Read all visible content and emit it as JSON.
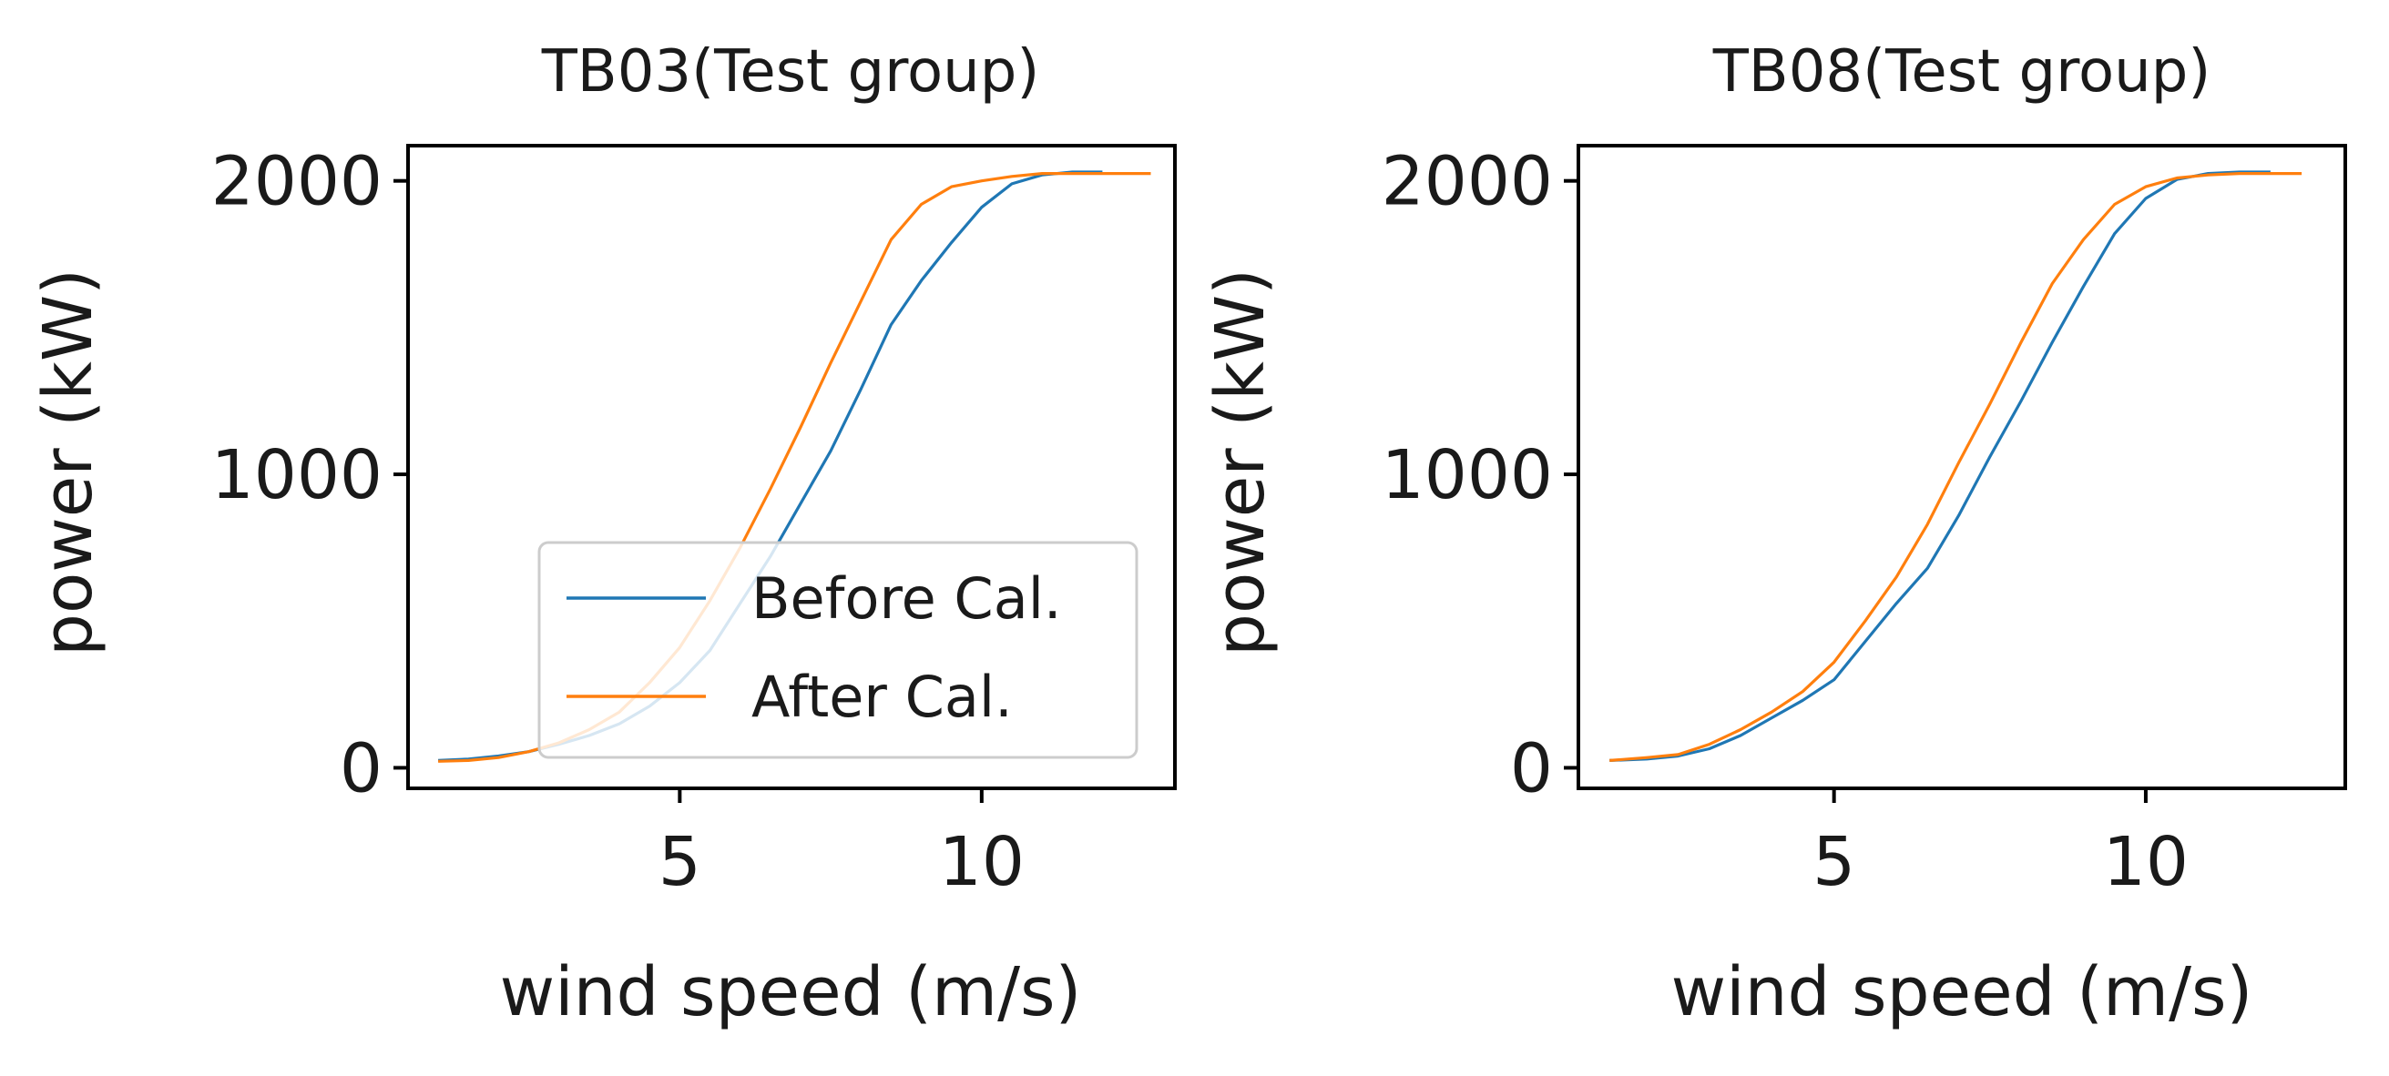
{
  "figure": {
    "colors": {
      "before": "#1f77b4",
      "after": "#ff7f0e",
      "axes": "#000000",
      "background": "#ffffff"
    }
  },
  "chart_data": [
    {
      "type": "line",
      "title": "TB03(Test group)",
      "xlabel": "wind speed (m/s)",
      "ylabel": "power (kW)",
      "xlim": [
        0.5,
        13.2
      ],
      "ylim": [
        -70,
        2120
      ],
      "xticks": [
        5,
        10
      ],
      "xtick_labels": [
        "5",
        "10"
      ],
      "yticks": [
        0,
        1000,
        2000
      ],
      "ytick_labels": [
        "0",
        "1000",
        "2000"
      ],
      "legend": {
        "position": "lower-right",
        "entries": [
          "Before Cal.",
          "After Cal."
        ]
      },
      "series": [
        {
          "name": "Before Cal.",
          "color": "#1f77b4",
          "x": [
            1.0,
            1.5,
            2.0,
            2.5,
            3.0,
            3.5,
            4.0,
            4.5,
            5.0,
            5.5,
            6.0,
            6.5,
            7.0,
            7.5,
            8.0,
            8.5,
            9.0,
            9.5,
            10.0,
            10.5,
            11.0,
            11.5,
            12.0
          ],
          "y": [
            25,
            30,
            40,
            55,
            80,
            110,
            150,
            210,
            290,
            400,
            560,
            720,
            900,
            1080,
            1290,
            1510,
            1660,
            1790,
            1910,
            1990,
            2020,
            2030,
            2030
          ]
        },
        {
          "name": "After Cal.",
          "color": "#ff7f0e",
          "x": [
            1.0,
            1.5,
            2.0,
            2.5,
            3.0,
            3.5,
            4.0,
            4.5,
            5.0,
            5.5,
            6.0,
            6.5,
            7.0,
            7.5,
            8.0,
            8.5,
            9.0,
            9.5,
            10.0,
            10.5,
            11.0,
            11.5,
            12.0,
            12.5,
            12.8
          ],
          "y": [
            22,
            25,
            35,
            55,
            85,
            130,
            190,
            290,
            410,
            570,
            750,
            950,
            1160,
            1380,
            1590,
            1800,
            1920,
            1980,
            2000,
            2015,
            2025,
            2025,
            2025,
            2025,
            2025
          ]
        }
      ]
    },
    {
      "type": "line",
      "title": "TB08(Test group)",
      "xlabel": "wind speed (m/s)",
      "ylabel": "power (kW)",
      "xlim": [
        0.9,
        13.2
      ],
      "ylim": [
        -70,
        2120
      ],
      "xticks": [
        5,
        10
      ],
      "xtick_labels": [
        "5",
        "10"
      ],
      "yticks": [
        0,
        1000,
        2000
      ],
      "ytick_labels": [
        "0",
        "1000",
        "2000"
      ],
      "series": [
        {
          "name": "Before Cal.",
          "color": "#1f77b4",
          "x": [
            1.4,
            2.0,
            2.5,
            3.0,
            3.5,
            4.0,
            4.5,
            5.0,
            5.5,
            6.0,
            6.5,
            7.0,
            7.5,
            8.0,
            8.5,
            9.0,
            9.5,
            10.0,
            10.5,
            11.0,
            11.5,
            12.0
          ],
          "y": [
            25,
            30,
            40,
            65,
            110,
            170,
            230,
            300,
            430,
            560,
            680,
            860,
            1060,
            1250,
            1450,
            1640,
            1820,
            1940,
            2005,
            2025,
            2030,
            2030
          ]
        },
        {
          "name": "After Cal.",
          "color": "#ff7f0e",
          "x": [
            1.4,
            2.0,
            2.5,
            3.0,
            3.5,
            4.0,
            4.5,
            5.0,
            5.5,
            6.0,
            6.5,
            7.0,
            7.5,
            8.0,
            8.5,
            9.0,
            9.5,
            10.0,
            10.5,
            11.0,
            11.5,
            12.0,
            12.5
          ],
          "y": [
            25,
            35,
            45,
            80,
            130,
            190,
            260,
            360,
            500,
            650,
            830,
            1040,
            1240,
            1450,
            1650,
            1800,
            1920,
            1980,
            2010,
            2020,
            2025,
            2025,
            2025
          ]
        }
      ]
    }
  ]
}
